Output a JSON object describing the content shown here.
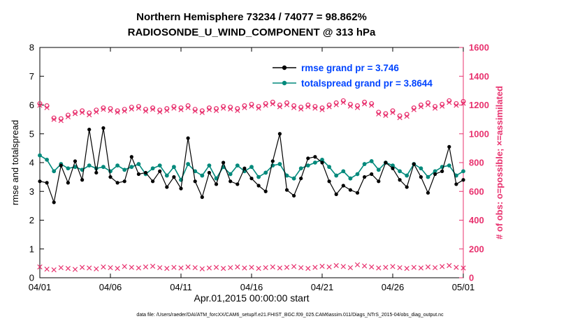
{
  "colors": {
    "rmse": "#000000",
    "totalspread": "#00897b",
    "obs": "#e8316e",
    "legend_text": "#0044ff",
    "axis": "#000000",
    "background": "#ffffff"
  },
  "title": {
    "line1": "Northern Hemisphere 73234 / 74077 = 98.862%",
    "line2": "RADIOSONDE_U_WIND_COMPONENT @ 313 hPa"
  },
  "legend": [
    {
      "label": "rmse grand pr = 3.746",
      "series": "rmse"
    },
    {
      "label": "totalspread grand pr = 3.8644",
      "series": "totalspread"
    }
  ],
  "xlabel": "Apr.01,2015 00:00:00 start",
  "ylabel_left": "rmse and totalspread",
  "ylabel_right": "# of obs: o=possible; ×=assimilated",
  "caption": "data file: /Users/raeder/DAI/ATM_forcXX/CAM6_setup/f.e21.FHIST_BGC.f09_025.CAM6assim.011/Diags_NTrS_2015-04/obs_diag_output.nc",
  "chart_data": {
    "type": "line",
    "title": "Northern Hemisphere 73234 / 74077 = 98.862% | RADIOSONDE_U_WIND_COMPONENT @ 313 hPa",
    "x_tick_labels": [
      "04/01",
      "04/06",
      "04/11",
      "04/16",
      "04/21",
      "04/26",
      "05/01"
    ],
    "left_axis": {
      "label": "rmse and totalspread",
      "min": 0,
      "max": 8,
      "ticks": [
        0,
        1,
        2,
        3,
        4,
        5,
        6,
        7,
        8
      ]
    },
    "right_axis": {
      "label": "# of obs: o=possible; x=assimilated",
      "min": 0,
      "max": 1600,
      "ticks": [
        0,
        200,
        400,
        600,
        800,
        1000,
        1200,
        1400,
        1600
      ]
    },
    "grid": false,
    "legend_position": "top-center-inside",
    "series": [
      {
        "name": "rmse",
        "axis": "left",
        "marker": "dot",
        "line": true,
        "color_key": "rmse",
        "grand_mean": 3.746,
        "values": [
          3.35,
          3.3,
          2.62,
          3.9,
          3.3,
          4.05,
          3.4,
          5.15,
          3.65,
          5.2,
          3.5,
          3.3,
          3.35,
          4.2,
          3.6,
          3.65,
          3.35,
          3.7,
          3.15,
          3.5,
          3.1,
          4.85,
          3.35,
          2.8,
          3.65,
          3.25,
          4.0,
          3.35,
          3.25,
          3.8,
          3.45,
          3.2,
          3.0,
          4.05,
          5.0,
          3.05,
          2.85,
          3.45,
          4.15,
          4.2,
          4.0,
          3.35,
          2.9,
          3.2,
          3.05,
          2.95,
          3.5,
          3.6,
          3.35,
          4.0,
          3.8,
          3.4,
          3.15,
          3.95,
          3.5,
          2.95,
          3.6,
          3.7,
          4.55,
          3.25,
          3.4
        ]
      },
      {
        "name": "totalspread",
        "axis": "left",
        "marker": "dot",
        "line": true,
        "color_key": "totalspread",
        "grand_mean": 3.8644,
        "values": [
          4.25,
          4.1,
          3.7,
          3.95,
          3.8,
          3.85,
          3.75,
          3.9,
          3.8,
          3.85,
          3.7,
          3.9,
          3.75,
          3.85,
          3.95,
          3.6,
          3.8,
          3.9,
          3.55,
          3.85,
          3.4,
          3.95,
          3.7,
          3.55,
          3.9,
          3.45,
          3.85,
          3.6,
          3.9,
          3.7,
          3.85,
          3.5,
          3.65,
          3.9,
          3.95,
          3.55,
          3.45,
          3.8,
          3.9,
          4.0,
          4.1,
          3.85,
          3.55,
          3.7,
          3.45,
          3.6,
          3.95,
          4.05,
          3.75,
          4.0,
          3.9,
          3.7,
          3.55,
          3.95,
          3.8,
          3.5,
          3.7,
          3.85,
          3.9,
          3.55,
          3.7
        ]
      },
      {
        "name": "n_possible",
        "axis": "right",
        "marker": "circle",
        "line": false,
        "color_key": "obs",
        "values": [
          1210,
          1195,
          1110,
          1105,
          1130,
          1150,
          1160,
          1145,
          1165,
          1180,
          1175,
          1160,
          1170,
          1185,
          1190,
          1170,
          1180,
          1165,
          1175,
          1190,
          1180,
          1195,
          1170,
          1160,
          1180,
          1175,
          1190,
          1185,
          1175,
          1195,
          1205,
          1190,
          1210,
          1220,
          1200,
          1215,
          1195,
          1185,
          1200,
          1190,
          1180,
          1200,
          1215,
          1230,
          1205,
          1195,
          1220,
          1210,
          1150,
          1140,
          1160,
          1125,
          1135,
          1180,
          1200,
          1215,
          1190,
          1205,
          1230,
          1210,
          1225
        ]
      },
      {
        "name": "n_assimilated",
        "axis": "right",
        "marker": "x",
        "line": false,
        "color_key": "obs",
        "values": [
          1198,
          1182,
          1100,
          1092,
          1118,
          1140,
          1148,
          1132,
          1152,
          1170,
          1162,
          1150,
          1158,
          1172,
          1178,
          1158,
          1170,
          1152,
          1162,
          1178,
          1168,
          1182,
          1158,
          1148,
          1168,
          1162,
          1178,
          1172,
          1162,
          1182,
          1192,
          1178,
          1198,
          1208,
          1188,
          1202,
          1182,
          1172,
          1188,
          1178,
          1168,
          1188,
          1202,
          1218,
          1192,
          1182,
          1208,
          1198,
          1138,
          1128,
          1148,
          1112,
          1122,
          1168,
          1188,
          1202,
          1178,
          1192,
          1218,
          1198,
          1212
        ]
      },
      {
        "name": "n_bottom",
        "axis": "right",
        "marker": "x",
        "line": false,
        "color_key": "obs",
        "values": [
          75,
          60,
          55,
          70,
          65,
          58,
          72,
          68,
          62,
          75,
          70,
          65,
          78,
          72,
          68,
          75,
          80,
          70,
          65,
          72,
          68,
          75,
          70,
          62,
          68,
          72,
          65,
          70,
          75,
          68,
          72,
          65,
          70,
          75,
          68,
          72,
          78,
          70,
          65,
          72,
          80,
          75,
          85,
          78,
          70,
          90,
          82,
          75,
          68,
          72,
          78,
          70,
          65,
          72,
          68,
          75,
          70,
          78,
          85,
          72,
          68
        ]
      }
    ]
  }
}
